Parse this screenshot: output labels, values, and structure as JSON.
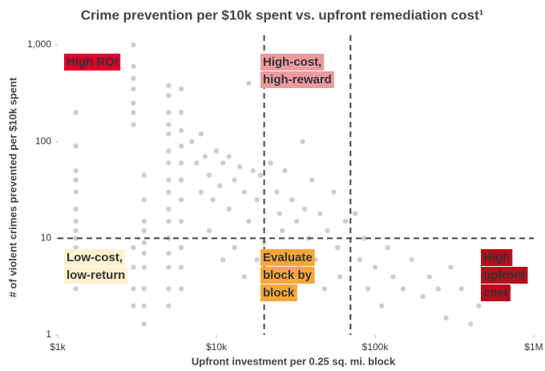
{
  "chart_data": {
    "type": "scatter",
    "title": "Crime prevention per $10k spent vs. upfront remediation cost¹",
    "x_label": "Upfront investment per 0.25 sq. mi. block",
    "y_label": "# of violent crimes prevented per $10k spent",
    "log_x": true,
    "log_y": true,
    "xlim": [
      1000,
      1000000
    ],
    "ylim": [
      1,
      1000
    ],
    "xticks": [
      {
        "value": 1000,
        "label": "$1k"
      },
      {
        "value": 10000,
        "label": "$10k"
      },
      {
        "value": 100000,
        "label": "$100k"
      },
      {
        "value": 1000000,
        "label": "$1M"
      }
    ],
    "yticks": [
      {
        "value": 1000,
        "label": "1,000"
      },
      100,
      10,
      1
    ],
    "vlines": [
      20000,
      70000
    ],
    "hline": 10,
    "color": "#c8d0d6",
    "x": [
      1300,
      1300,
      1300,
      1300,
      1300,
      1300,
      1300,
      1300,
      1300,
      1300,
      1300,
      1300,
      1300,
      3000,
      3000,
      3000,
      3000,
      3000,
      3000,
      3000,
      3000,
      3000,
      3000,
      3000,
      3500,
      3500,
      3500,
      3500,
      3500,
      3500,
      3500,
      3500,
      3500,
      3500,
      5000,
      5000,
      5000,
      5000,
      5000,
      5000,
      5000,
      5000,
      5000,
      5000,
      5000,
      5000,
      5000,
      5000,
      5000,
      5000,
      6000,
      6000,
      6000,
      6000,
      6000,
      6000,
      6000,
      6000,
      6000,
      6000,
      6000,
      7000,
      7500,
      8000,
      8000,
      8500,
      9000,
      9000,
      9500,
      10000,
      10500,
      11000,
      11000,
      12000,
      12000,
      13000,
      13000,
      14000,
      15000,
      15000,
      16000,
      16000,
      17000,
      18000,
      18000,
      19000,
      20000,
      22000,
      24000,
      25000,
      26000,
      27000,
      28000,
      30000,
      32000,
      33000,
      35000,
      36000,
      38000,
      40000,
      42000,
      45000,
      48000,
      50000,
      55000,
      58000,
      60000,
      65000,
      75000,
      80000,
      85000,
      90000,
      100000,
      110000,
      120000,
      130000,
      150000,
      170000,
      200000,
      220000,
      250000,
      280000,
      300000,
      350000,
      400000,
      450000,
      550000,
      700000
    ],
    "values": [
      200,
      90,
      50,
      40,
      30,
      20,
      15,
      12,
      10,
      8,
      6,
      4,
      3,
      1000,
      600,
      450,
      350,
      250,
      200,
      150,
      8,
      5,
      3,
      2,
      45,
      25,
      15,
      12,
      9,
      7,
      5,
      3,
      2,
      1.3,
      380,
      300,
      200,
      150,
      120,
      80,
      60,
      40,
      30,
      20,
      15,
      10,
      7,
      5,
      3,
      2,
      350,
      200,
      130,
      90,
      60,
      40,
      25,
      15,
      8,
      5,
      3,
      100,
      60,
      120,
      30,
      70,
      45,
      12,
      25,
      80,
      35,
      60,
      6,
      70,
      20,
      40,
      8,
      55,
      30,
      4,
      400,
      15,
      50,
      25,
      6,
      45,
      9,
      60,
      30,
      18,
      12,
      50,
      7,
      25,
      15,
      5,
      100,
      20,
      10,
      40,
      6,
      18,
      3,
      12,
      30,
      8,
      4,
      15,
      18,
      6,
      10,
      3,
      5,
      2,
      8,
      4,
      3,
      6,
      2.5,
      4,
      3,
      1.5,
      5,
      3,
      1.3,
      2,
      4,
      3
    ],
    "annotations": [
      {
        "lines": [
          "High ROI"
        ],
        "background": "#e0002a",
        "text_color": "#ffffff"
      },
      {
        "lines": [
          "High-cost,",
          "high-reward"
        ],
        "background": "#eb9a9f",
        "text_color": "#ffffff"
      },
      {
        "lines": [
          "Low-cost,",
          "low-return"
        ],
        "background": "#fdf1cf",
        "text_color": "#222222"
      },
      {
        "lines": [
          "Evaluate",
          "block by",
          "block"
        ],
        "background": "#f7a63a",
        "text_color": "#ffffff"
      },
      {
        "lines": [
          "High",
          "upfront",
          "cost"
        ],
        "background": "#b80d1d",
        "text_color": "#ffffff"
      }
    ]
  }
}
